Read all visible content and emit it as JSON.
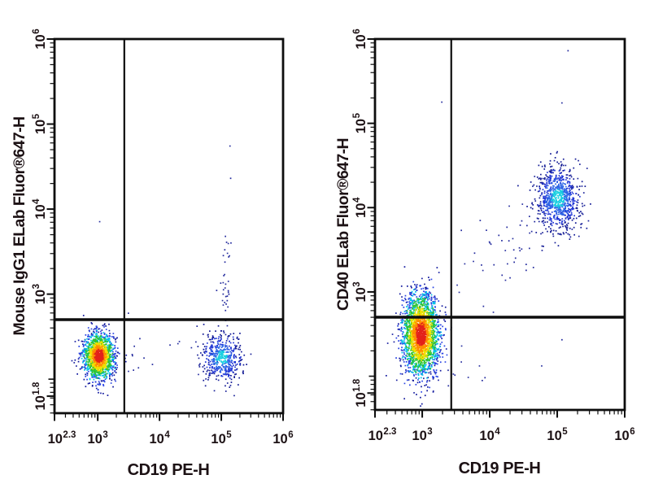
{
  "figure": {
    "background": "#ffffff",
    "text_color": "#1c1114",
    "axis_color": "#0d0d0d"
  },
  "palettes": {
    "jet": [
      [
        0.5,
        "#e32119"
      ],
      [
        0.8,
        "#ff8c00"
      ],
      [
        1.15,
        "#f0e000"
      ],
      [
        1.55,
        "#2fc42f"
      ],
      [
        1.95,
        "#00c3e8"
      ],
      [
        2.5,
        "#2742e3"
      ],
      [
        9,
        "#131a9e"
      ]
    ],
    "blue": [
      [
        0.55,
        "#17cfe0"
      ],
      [
        1.05,
        "#2d66e6"
      ],
      [
        1.65,
        "#2036d6"
      ],
      [
        9,
        "#141c96"
      ]
    ],
    "sparse": [
      [
        9,
        "#252c9e"
      ]
    ]
  },
  "chart_data": [
    {
      "type": "scatter",
      "subtype": "flow-cytometry-pseudocolor-density",
      "xlabel": "CD19 PE-H",
      "ylabel": "Mouse IgG1 ELab Fluor®647-H",
      "x_scale": "log10",
      "y_scale": "log10",
      "x_range_log10": [
        2.3,
        6
      ],
      "y_range_log10": [
        1.6,
        6
      ],
      "x_major_ticks": [
        {
          "log": 2.3,
          "exp": "2.3"
        },
        {
          "log": 3,
          "exp": "3"
        },
        {
          "log": 4,
          "exp": "4"
        },
        {
          "log": 5,
          "exp": "5"
        },
        {
          "log": 6,
          "exp": "6"
        }
      ],
      "y_major_ticks": [
        {
          "log": 1.8,
          "exp": "1.8"
        },
        {
          "log": 3,
          "exp": "3"
        },
        {
          "log": 4,
          "exp": "4"
        },
        {
          "log": 5,
          "exp": "5"
        },
        {
          "log": 6,
          "exp": "6"
        }
      ],
      "grid": false,
      "legend": false,
      "quadrant_gate_log10": {
        "x": 3.43,
        "y": 2.7
      },
      "populations": [
        {
          "name": "isotype-negative-main",
          "shape": "gauss",
          "cx": 3.01,
          "cy": 2.28,
          "sx": 0.125,
          "sy": 0.135,
          "n": 1500,
          "palette": "jet"
        },
        {
          "name": "cd19-positive-isotype-negative",
          "shape": "gauss",
          "cx": 5.0,
          "cy": 2.26,
          "sx": 0.155,
          "sy": 0.145,
          "n": 520,
          "palette": "blue"
        },
        {
          "name": "vertical-sparse-tail",
          "shape": "trail",
          "x0": 5.02,
          "y0": 2.62,
          "x1": 5.08,
          "y1": 3.5,
          "jx": 0.05,
          "jy": 0.16,
          "n": 34,
          "palette": "sparse"
        },
        {
          "name": "background-noise",
          "shape": "gauss",
          "cx": 4.1,
          "cy": 2.3,
          "sx": 0.7,
          "sy": 0.18,
          "n": 20,
          "palette": "sparse"
        },
        {
          "name": "outlier-events",
          "shape": "points",
          "pts": [
            [
              3.02,
              3.86
            ],
            [
              5.13,
              4.75
            ],
            [
              5.14,
              4.37
            ]
          ],
          "palette": "sparse"
        }
      ]
    },
    {
      "type": "scatter",
      "subtype": "flow-cytometry-pseudocolor-density",
      "xlabel": "CD19 PE-H",
      "ylabel": "CD40 ELab Fluor®647-H",
      "x_scale": "log10",
      "y_scale": "log10",
      "x_range_log10": [
        2.3,
        6
      ],
      "y_range_log10": [
        1.6,
        6
      ],
      "x_major_ticks": [
        {
          "log": 2.3,
          "exp": "2.3"
        },
        {
          "log": 3,
          "exp": "3"
        },
        {
          "log": 4,
          "exp": "4"
        },
        {
          "log": 5,
          "exp": "5"
        },
        {
          "log": 6,
          "exp": "6"
        }
      ],
      "y_major_ticks": [
        {
          "log": 1.8,
          "exp": "1.8"
        },
        {
          "log": 3,
          "exp": "3"
        },
        {
          "log": 4,
          "exp": "4"
        },
        {
          "log": 5,
          "exp": "5"
        },
        {
          "log": 6,
          "exp": "6"
        }
      ],
      "grid": false,
      "legend": false,
      "quadrant_gate_log10": {
        "x": 3.43,
        "y": 2.7
      },
      "populations": [
        {
          "name": "cd19-negative-cd40-dim",
          "shape": "gauss",
          "cx": 2.97,
          "cy": 2.5,
          "sx": 0.135,
          "sy": 0.24,
          "n": 2400,
          "palette": "jet"
        },
        {
          "name": "cd19-positive-cd40-positive",
          "shape": "gauss",
          "cx": 5.0,
          "cy": 4.12,
          "sx": 0.16,
          "sy": 0.19,
          "n": 850,
          "palette": "blue"
        },
        {
          "name": "diagonal-sparse-bridge",
          "shape": "trail",
          "x0": 3.65,
          "y0": 3.15,
          "x1": 4.8,
          "y1": 3.85,
          "jx": 0.18,
          "jy": 0.22,
          "n": 52,
          "palette": "sparse"
        },
        {
          "name": "background-noise",
          "shape": "gauss",
          "cx": 3.4,
          "cy": 2.1,
          "sx": 0.5,
          "sy": 0.2,
          "n": 14,
          "palette": "sparse"
        },
        {
          "name": "outlier-events",
          "shape": "points",
          "pts": [
            [
              3.28,
              5.26
            ],
            [
              5.15,
              5.87
            ],
            [
              5.06,
              5.25
            ],
            [
              4.76,
              2.13
            ],
            [
              5.06,
              2.44
            ]
          ],
          "palette": "sparse"
        }
      ]
    }
  ]
}
